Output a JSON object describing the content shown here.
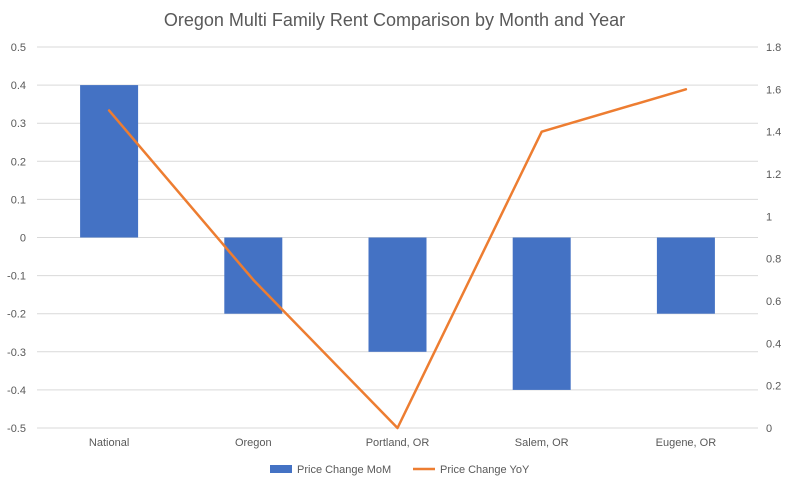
{
  "chart_data": {
    "type": "bar",
    "title": "Oregon Multi Family Rent Comparison by Month and Year",
    "categories": [
      "National",
      "Oregon",
      "Portland, OR",
      "Salem, OR",
      "Eugene, OR"
    ],
    "series": [
      {
        "name": "Price Change MoM",
        "type": "bar",
        "axis": "left",
        "color": "#4472C4",
        "values": [
          0.4,
          -0.2,
          -0.3,
          -0.4,
          -0.2
        ]
      },
      {
        "name": "Price Change YoY",
        "type": "line",
        "axis": "right",
        "color": "#ED7D31",
        "values": [
          1.5,
          0.7,
          0.0,
          1.4,
          1.6
        ]
      }
    ],
    "y_left": {
      "min": -0.5,
      "max": 0.5,
      "step": 0.1,
      "ticks": [
        "-0.5",
        "-0.4",
        "-0.3",
        "-0.2",
        "-0.1",
        "0",
        "0.1",
        "0.2",
        "0.3",
        "0.4",
        "0.5"
      ]
    },
    "y_right": {
      "min": 0,
      "max": 1.8,
      "step": 0.2,
      "ticks": [
        "0",
        "0.2",
        "0.4",
        "0.6",
        "0.8",
        "1",
        "1.2",
        "1.4",
        "1.6",
        "1.8"
      ]
    },
    "grid": true,
    "legend_position": "bottom",
    "colors": {
      "grid": "#D9D9D9",
      "text": "#595959"
    }
  }
}
